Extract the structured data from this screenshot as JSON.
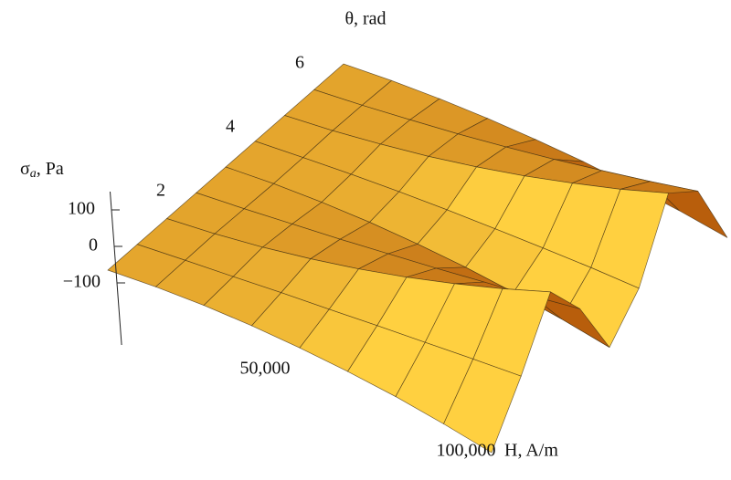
{
  "chart_data": {
    "type": "surface",
    "x_label": "H, A/m",
    "y_label": "θ, rad",
    "z_label": "σ",
    "z_label_sub": "a",
    "z_label_unit": ", Pa",
    "x": [
      0,
      12500,
      25000,
      37500,
      50000,
      62500,
      75000,
      87500,
      100000
    ],
    "y": [
      0,
      0.75,
      1.5,
      2.25,
      3,
      3.75,
      4.5,
      5.25,
      6
    ],
    "z": [
      [
        0,
        -2,
        -9,
        -21,
        -38,
        -59,
        -84,
        -115,
        -150
      ],
      [
        0,
        0,
        -1,
        -1,
        -3,
        -4,
        -6,
        -8,
        -11
      ],
      [
        0,
        2,
        9,
        21,
        37,
        58,
        84,
        114,
        149
      ],
      [
        0,
        0,
        2,
        4,
        8,
        12,
        18,
        24,
        32
      ],
      [
        0,
        -2,
        -9,
        -20,
        -36,
        -56,
        -81,
        -110,
        -144
      ],
      [
        0,
        -1,
        -3,
        -7,
        -13,
        -21,
        -30,
        -40,
        -53
      ],
      [
        0,
        2,
        9,
        19,
        34,
        53,
        77,
        104,
        137
      ],
      [
        0,
        1,
        5,
        10,
        18,
        28,
        41,
        55,
        72
      ],
      [
        0,
        -2,
        -8,
        -18,
        -32,
        -49,
        -71,
        -96,
        -126
      ]
    ],
    "xlim": [
      0,
      100000
    ],
    "ylim": [
      0,
      6
    ],
    "zlim": [
      -270,
      150
    ],
    "xticks": [
      {
        "value": 50000,
        "label": "50,000"
      },
      {
        "value": 100000,
        "label": "100,000"
      }
    ],
    "yticks": [
      2,
      4,
      6
    ],
    "zticks": [
      100,
      0,
      {
        "value": -100,
        "label": "−100"
      }
    ],
    "color_low": "#b85e0c",
    "color_high": "#ffd040"
  }
}
